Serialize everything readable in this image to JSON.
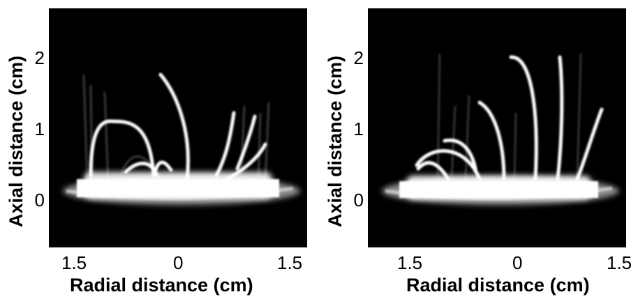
{
  "panels": [
    {
      "xlabel": "Radial distance (cm)",
      "ylabel": "Axial distance (cm)",
      "x_ticks": [
        "1.5",
        "0",
        "1.5"
      ],
      "y_ticks": [
        "2",
        "1",
        "0"
      ]
    },
    {
      "xlabel": "Radial distance (cm)",
      "ylabel": "Axial distance (cm)",
      "x_ticks": [
        "1.5",
        "0",
        "1.5"
      ],
      "y_ticks": [
        "2",
        "1",
        "0"
      ]
    }
  ],
  "colors": {
    "background": "#000000",
    "glow": "#ffffff"
  }
}
